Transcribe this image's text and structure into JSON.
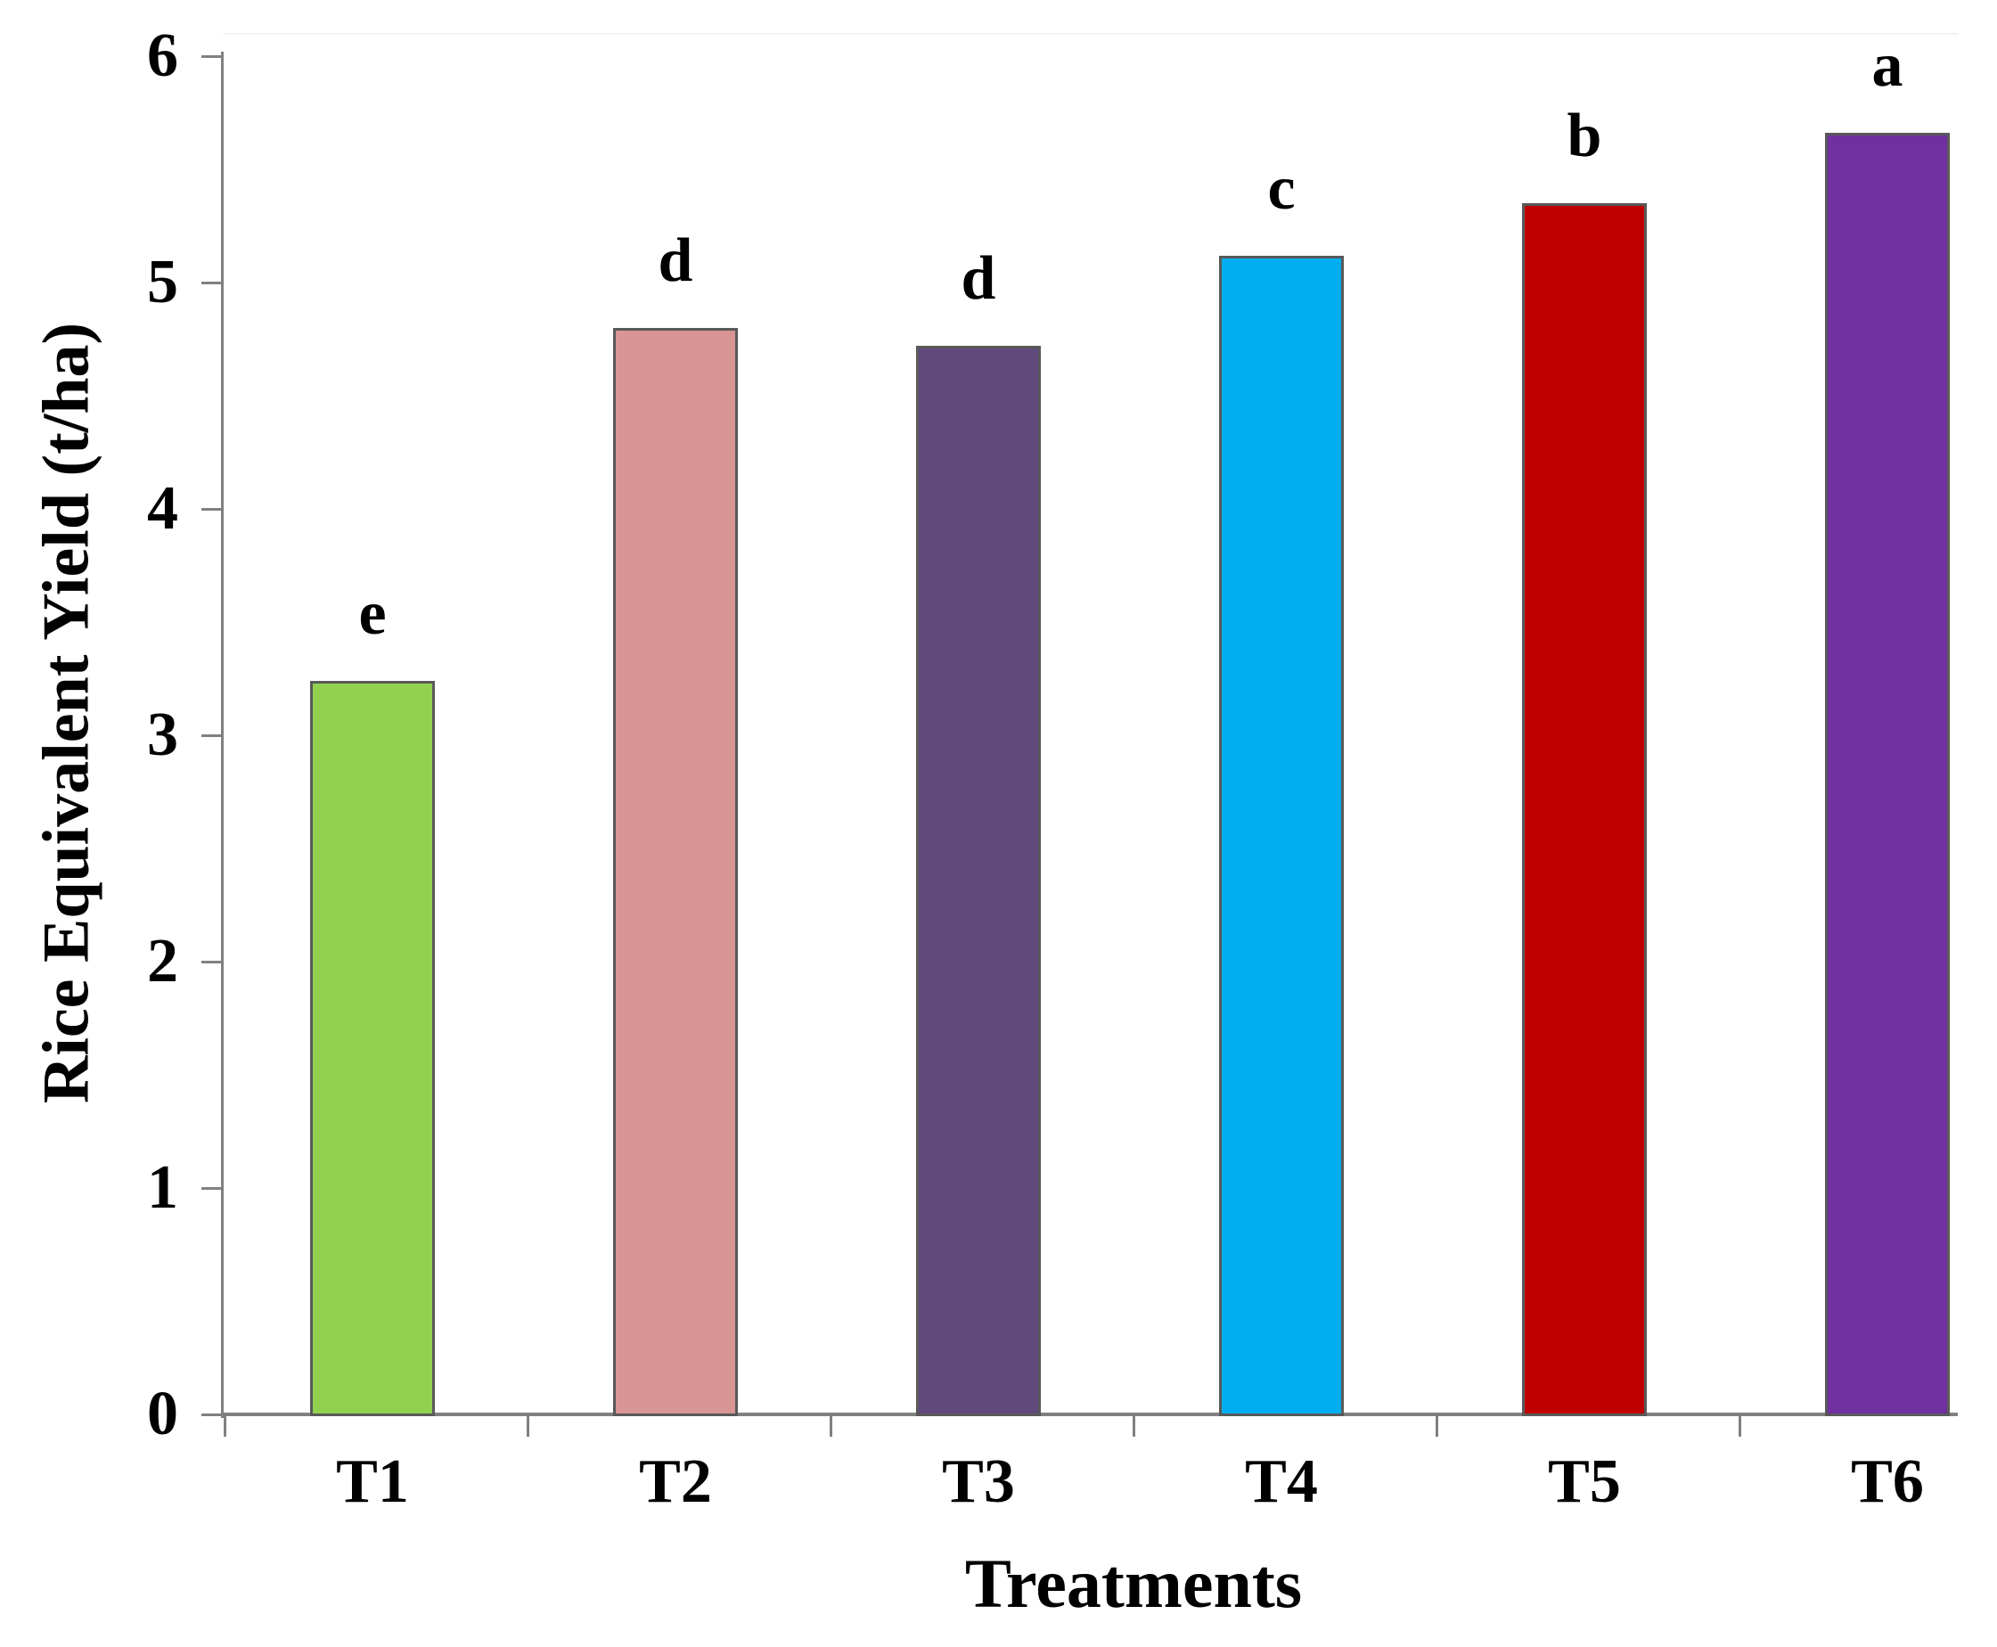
{
  "chart_data": {
    "type": "bar",
    "title": "",
    "xlabel": "Treatments",
    "ylabel": "Rice Equivalent Yield (t/ha)",
    "categories": [
      "T1",
      "T2",
      "T3",
      "T4",
      "T5",
      "T6"
    ],
    "values": [
      3.24,
      4.8,
      4.72,
      5.12,
      5.35,
      5.66
    ],
    "bar_labels": [
      "e",
      "d",
      "d",
      "c",
      "b",
      "a"
    ],
    "bar_colors": [
      "#92D050",
      "#D99594",
      "#604A7B",
      "#00AEEF",
      "#C00000",
      "#7030A0"
    ],
    "bar_border_color": "#595959",
    "axis_color": "#808080",
    "text_color": "#000000",
    "ylim": [
      0,
      6
    ],
    "yticks": [
      0,
      1,
      2,
      3,
      4,
      5,
      6
    ],
    "grid": false,
    "legend_position": "none"
  }
}
